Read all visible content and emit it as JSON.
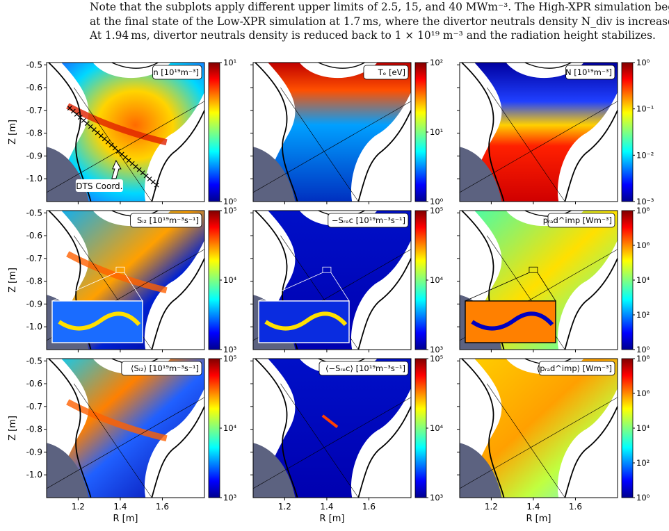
{
  "caption": {
    "lines": [
      "Note that the subplots apply different upper limits of 2.5, 15, and 40 MWm⁻³. The High-XPR simulation begins",
      "at the final state of the Low-XPR simulation at 1.7 ms, where the divertor neutrals density N_div is increased.",
      "At 1.94 ms, divertor neutrals density is reduced back to 1 × 10¹⁹ m⁻³ and the radiation height stabilizes."
    ]
  },
  "axes": {
    "xlabel": "R [m]",
    "ylabel": "Z [m]",
    "xticks": [
      "1.2",
      "1.4",
      "1.6"
    ],
    "yticks": [
      "-0.5",
      "-0.6",
      "-0.7",
      "-0.8",
      "-0.9",
      "-1.0"
    ]
  },
  "panels": [
    {
      "label": "n [10¹⁹m⁻³]",
      "cmap": "n",
      "colorbar": [
        "10¹",
        "10⁰"
      ],
      "annotation": "DTS Coord."
    },
    {
      "label": "Tₑ [eV]",
      "cmap": "te",
      "colorbar": [
        "10²",
        "10¹",
        "10⁰"
      ]
    },
    {
      "label": "N [10¹⁹m⁻³]",
      "cmap": "N",
      "colorbar": [
        "10⁰",
        "10⁻¹",
        "10⁻²",
        "10⁻³"
      ]
    },
    {
      "label": "Sᵢ₂ [10¹⁹m⁻³s⁻¹]",
      "cmap": "siz",
      "colorbar": [
        "10⁵",
        "10⁴",
        "10³"
      ]
    },
    {
      "label": "−Sᵣₑc [10¹⁹m⁻³s⁻¹]",
      "cmap": "srec",
      "colorbar": [
        "10⁵",
        "10⁴",
        "10³"
      ]
    },
    {
      "label": "pᵣₐd^imp [Wm⁻³]",
      "cmap": "prad",
      "colorbar": [
        "10⁸",
        "10⁶",
        "10⁴",
        "10²",
        "10⁰"
      ]
    },
    {
      "label": "⟨Sᵢ₂⟩ [10¹⁹m⁻³s⁻¹]",
      "cmap": "sizavg",
      "colorbar": [
        "10⁵",
        "10⁴",
        "10³"
      ]
    },
    {
      "label": "⟨−Sᵣₑc⟩ [10¹⁹m⁻³s⁻¹]",
      "cmap": "srecavg",
      "colorbar": [
        "10⁵",
        "10⁴",
        "10³"
      ]
    },
    {
      "label": "⟨pᵣₐd^imp⟩ [Wm⁻³]",
      "cmap": "pradavg",
      "colorbar": [
        "10⁸",
        "10⁶",
        "10⁴",
        "10²",
        "10⁰"
      ]
    }
  ]
}
